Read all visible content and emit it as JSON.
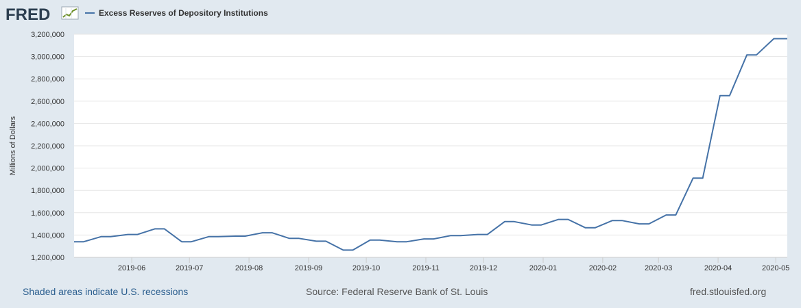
{
  "logo": {
    "text": "FRED",
    "icon": "chart-line-icon"
  },
  "colors": {
    "series": "#4572a7",
    "background": "#e1e9f0",
    "plot_bg": "#ffffff",
    "grid": "#e6e6e6",
    "logo": "#2c3e50",
    "link": "#2c5f8f"
  },
  "footer": {
    "recessions_note": "Shaded areas indicate U.S. recessions",
    "source": "Source: Federal Reserve Bank of St. Louis",
    "site": "fred.stlouisfed.org"
  },
  "chart_data": {
    "type": "line",
    "title": "",
    "xlabel": "",
    "ylabel": "Millions of Dollars",
    "ylim": [
      1200000,
      3200000
    ],
    "xlim": [
      "2019-05-02",
      "2020-05-07"
    ],
    "grid": true,
    "legend_position": "top-left",
    "x_tick_labels": [
      "2019-06",
      "2019-07",
      "2019-08",
      "2019-09",
      "2019-10",
      "2019-11",
      "2019-12",
      "2020-01",
      "2020-02",
      "2020-03",
      "2020-04",
      "2020-05"
    ],
    "y_tick_labels": [
      "1,200,000",
      "1,400,000",
      "1,600,000",
      "1,800,000",
      "2,000,000",
      "2,200,000",
      "2,400,000",
      "2,600,000",
      "2,800,000",
      "3,000,000",
      "3,200,000"
    ],
    "series": [
      {
        "name": "Excess Reserves of Depository Institutions",
        "x": [
          "2019-05-02",
          "2019-05-07",
          "2019-05-16",
          "2019-05-21",
          "2019-05-30",
          "2019-06-04",
          "2019-06-13",
          "2019-06-18",
          "2019-06-27",
          "2019-07-02",
          "2019-07-11",
          "2019-07-16",
          "2019-07-25",
          "2019-07-30",
          "2019-08-08",
          "2019-08-13",
          "2019-08-22",
          "2019-08-27",
          "2019-09-05",
          "2019-09-10",
          "2019-09-19",
          "2019-09-24",
          "2019-10-03",
          "2019-10-08",
          "2019-10-17",
          "2019-10-22",
          "2019-10-31",
          "2019-11-05",
          "2019-11-14",
          "2019-11-19",
          "2019-11-28",
          "2019-12-03",
          "2019-12-12",
          "2019-12-17",
          "2019-12-26",
          "2019-12-31",
          "2020-01-09",
          "2020-01-14",
          "2020-01-23",
          "2020-01-28",
          "2020-02-06",
          "2020-02-11",
          "2020-02-20",
          "2020-02-25",
          "2020-03-05",
          "2020-03-10",
          "2020-03-19",
          "2020-03-24",
          "2020-04-02",
          "2020-04-07",
          "2020-04-16",
          "2020-04-21",
          "2020-04-30",
          "2020-05-07"
        ],
        "values": [
          1340000,
          1340000,
          1385000,
          1385000,
          1405000,
          1405000,
          1455000,
          1455000,
          1340000,
          1340000,
          1385000,
          1385000,
          1390000,
          1390000,
          1420000,
          1420000,
          1370000,
          1370000,
          1345000,
          1345000,
          1265000,
          1265000,
          1355000,
          1355000,
          1340000,
          1340000,
          1365000,
          1365000,
          1395000,
          1395000,
          1405000,
          1405000,
          1520000,
          1520000,
          1490000,
          1490000,
          1540000,
          1540000,
          1465000,
          1465000,
          1530000,
          1530000,
          1500000,
          1500000,
          1580000,
          1580000,
          1910000,
          1910000,
          2650000,
          2650000,
          3015000,
          3015000,
          3160000,
          3160000
        ]
      }
    ]
  }
}
